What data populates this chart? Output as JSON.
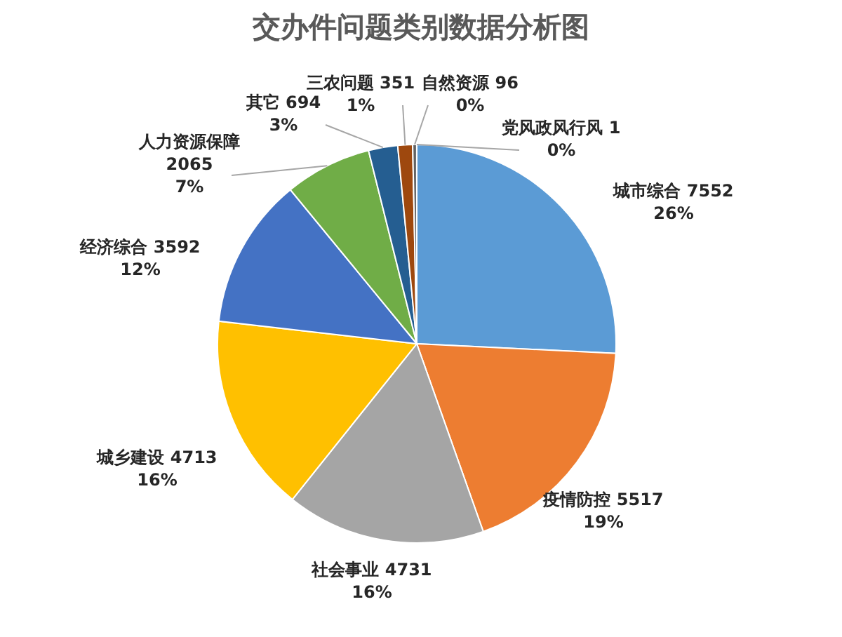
{
  "chart_data": {
    "type": "pie",
    "title": "交办件问题类别数据分析图",
    "categories": [
      "城市综合",
      "疫情防控",
      "社会事业",
      "城乡建设",
      "经济综合",
      "人力资源保障",
      "其它",
      "三农问题",
      "自然资源",
      "党风政风行风"
    ],
    "values": [
      7552,
      5517,
      4731,
      4713,
      3592,
      2065,
      694,
      351,
      96,
      1
    ],
    "colors": [
      "#5b9bd5",
      "#ed7d31",
      "#a5a5a5",
      "#ffc000",
      "#4472c4",
      "#70ad47",
      "#255e91",
      "#9e480e",
      "#636363",
      "#997300"
    ],
    "value_labels": [
      "7552\n26%",
      "5517\n19%",
      "4731\n16%",
      "4713\n16%",
      "3592\n12%",
      "2065\n7%",
      "694\n3%",
      "351\n1%",
      "96\n0%",
      "1\n0%"
    ]
  }
}
